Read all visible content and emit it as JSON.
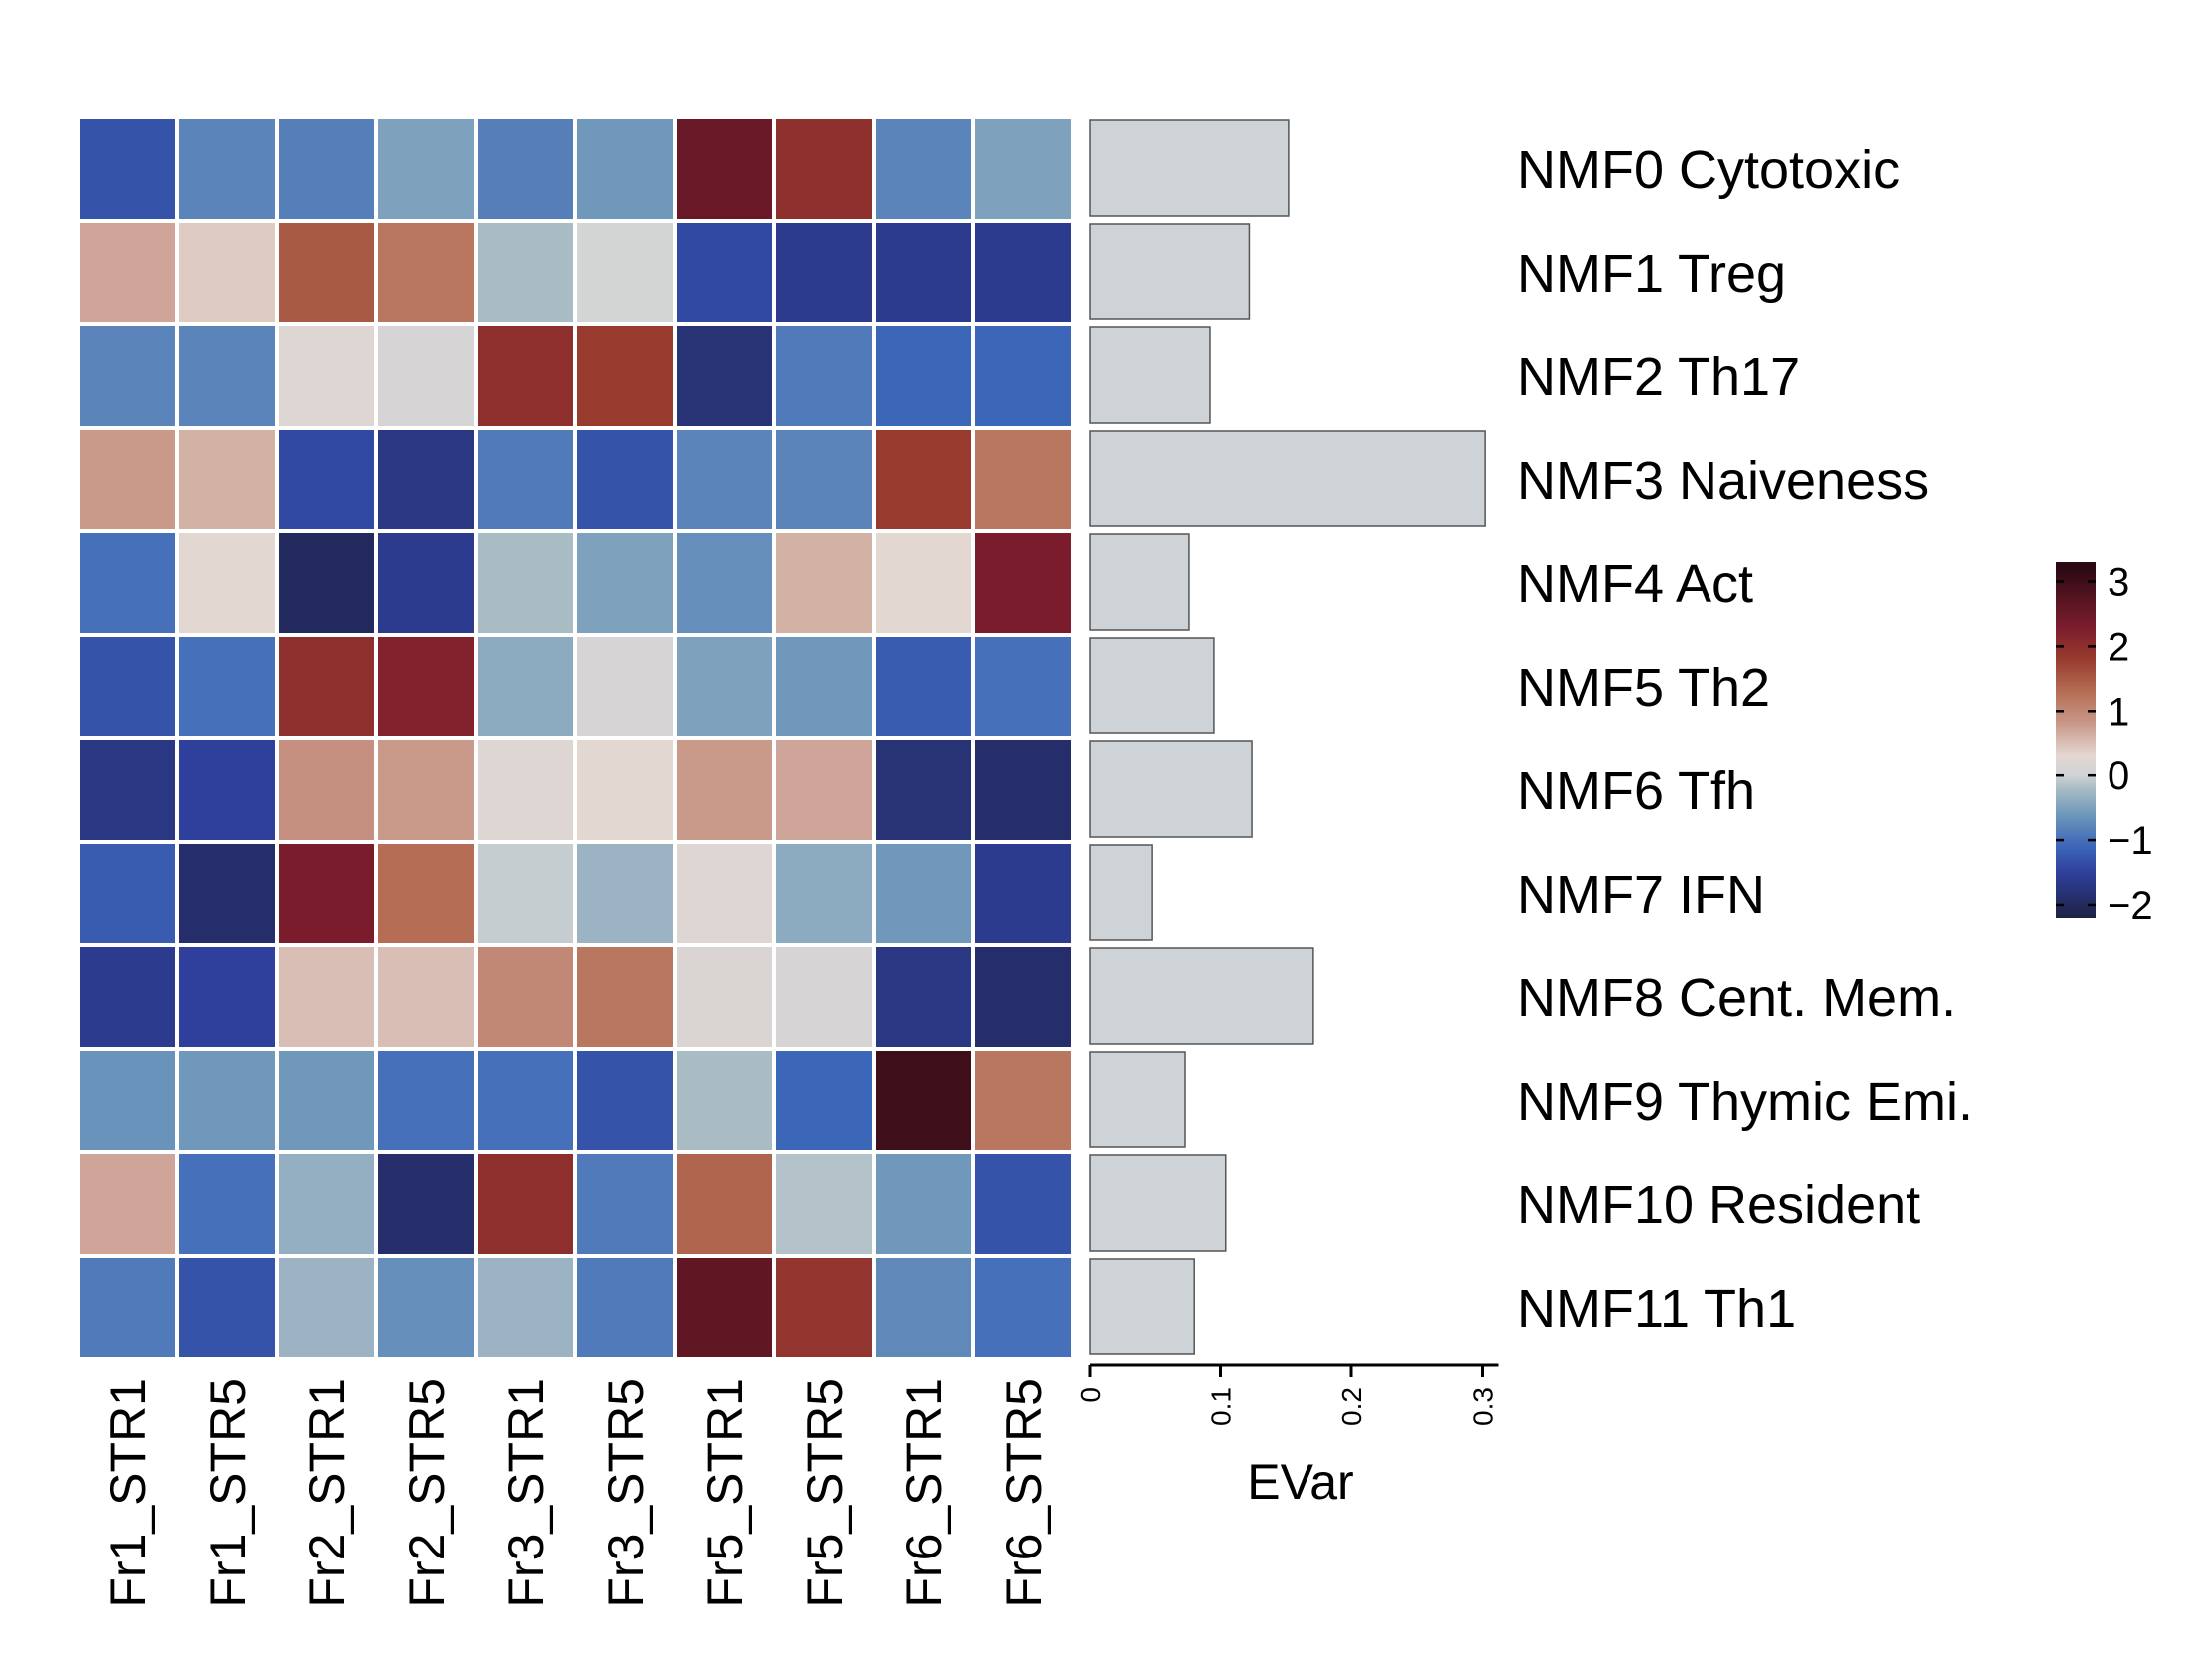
{
  "chart_data": {
    "type": "heatmap",
    "columns": [
      "Fr1_STR1",
      "Fr1_STR5",
      "Fr2_STR1",
      "Fr2_STR5",
      "Fr3_STR1",
      "Fr3_STR5",
      "Fr5_STR1",
      "Fr5_STR5",
      "Fr6_STR1",
      "Fr6_STR5"
    ],
    "rows": [
      "NMF0 Cytotoxic",
      "NMF1 Treg",
      "NMF2 Th17",
      "NMF3 Naiveness",
      "NMF4 Act",
      "NMF5 Th2",
      "NMF6 Tfh",
      "NMF7 IFN",
      "NMF8 Cent. Mem.",
      "NMF9 Thymic Emi.",
      "NMF10 Resident",
      "NMF11 Th1"
    ],
    "values": [
      [
        -1.3,
        -0.8,
        -0.85,
        -0.5,
        -0.85,
        -0.6,
        2.5,
        2.0,
        -0.8,
        -0.5
      ],
      [
        0.7,
        0.4,
        1.5,
        1.2,
        -0.2,
        0.05,
        -1.4,
        -1.6,
        -1.6,
        -1.6
      ],
      [
        -0.8,
        -0.8,
        0.2,
        0.1,
        2.0,
        1.8,
        -1.8,
        -0.9,
        -1.1,
        -1.1
      ],
      [
        0.8,
        0.6,
        -1.4,
        -1.7,
        -0.9,
        -1.3,
        -0.8,
        -0.8,
        1.8,
        1.2
      ],
      [
        -1.0,
        0.3,
        -2.0,
        -1.6,
        -0.2,
        -0.5,
        -0.7,
        0.6,
        0.3,
        2.3
      ],
      [
        -1.3,
        -1.0,
        2.0,
        2.2,
        -0.4,
        0.1,
        -0.5,
        -0.6,
        -1.2,
        -1.0
      ],
      [
        -1.7,
        -1.5,
        0.9,
        0.8,
        0.2,
        0.3,
        0.8,
        0.7,
        -1.8,
        -1.9
      ],
      [
        -1.2,
        -1.9,
        2.3,
        1.3,
        -0.05,
        -0.3,
        0.2,
        -0.4,
        -0.6,
        -1.6
      ],
      [
        -1.6,
        -1.5,
        0.5,
        0.5,
        1.0,
        1.2,
        0.15,
        0.1,
        -1.7,
        -1.9
      ],
      [
        -0.65,
        -0.6,
        -0.6,
        -1.0,
        -1.0,
        -1.3,
        -0.2,
        -1.1,
        3.0,
        1.2
      ],
      [
        0.7,
        -1.0,
        -0.35,
        -1.9,
        2.0,
        -0.9,
        1.4,
        -0.15,
        -0.6,
        -1.3
      ],
      [
        -0.9,
        -1.3,
        -0.3,
        -0.7,
        -0.3,
        -0.9,
        2.6,
        1.9,
        -0.75,
        -1.0
      ]
    ],
    "color_scale": {
      "stops": [
        {
          "value": -2.2,
          "color": "#1e2244"
        },
        {
          "value": -1.5,
          "color": "#2f3f9c"
        },
        {
          "value": -1.1,
          "color": "#3c66b8"
        },
        {
          "value": -0.6,
          "color": "#6f98bb"
        },
        {
          "value": -0.2,
          "color": "#a9bcc4"
        },
        {
          "value": 0.0,
          "color": "#d0d3d5"
        },
        {
          "value": 0.3,
          "color": "#e3d7d1"
        },
        {
          "value": 0.8,
          "color": "#c9998a"
        },
        {
          "value": 1.3,
          "color": "#b56e55"
        },
        {
          "value": 1.8,
          "color": "#983b2e"
        },
        {
          "value": 2.3,
          "color": "#7b1c2c"
        },
        {
          "value": 3.2,
          "color": "#2c0a14"
        }
      ],
      "legend_ticks": [
        -2,
        -1,
        0,
        1,
        2,
        3
      ],
      "legend_tick_labels": [
        "−2",
        "−1",
        "0",
        "1",
        "2",
        "3"
      ],
      "legend_range": [
        -2.2,
        3.3
      ]
    },
    "bar_panel": {
      "type": "bar",
      "orientation": "horizontal",
      "values": [
        0.152,
        0.122,
        0.092,
        0.302,
        0.076,
        0.095,
        0.124,
        0.048,
        0.171,
        0.073,
        0.104,
        0.08
      ],
      "xlabel": "EVar",
      "xlim": [
        0,
        0.3
      ],
      "ticks": [
        0,
        0.1,
        0.2,
        0.3
      ],
      "tick_labels": [
        "0",
        "0.1",
        "0.2",
        "0.3"
      ],
      "bar_color": "#cdd3d7",
      "bar_edge_color": "#555555"
    },
    "legend_placement": "right"
  }
}
